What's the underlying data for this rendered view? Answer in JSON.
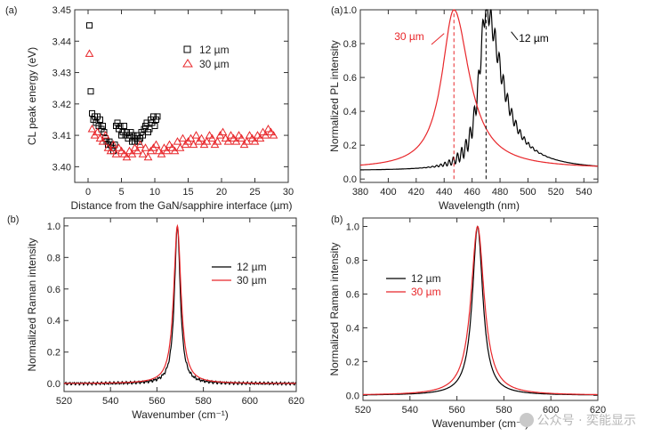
{
  "chart_data": [
    {
      "id": "cl",
      "type": "scatter",
      "panel_label": "(a)",
      "xlabel": "Distance from the GaN/sapphire interface (µm)",
      "ylabel": "CL peak energy (eV)",
      "xlim": [
        -2,
        30
      ],
      "ylim": [
        3.395,
        3.45
      ],
      "xticks": [
        0,
        5,
        10,
        15,
        20,
        25,
        30
      ],
      "yticks": [
        3.4,
        3.41,
        3.42,
        3.43,
        3.44,
        3.45
      ],
      "ytick_labels": [
        "3.40",
        "3.41",
        "3.42",
        "3.43",
        "3.44",
        "3.45"
      ],
      "legend_position": "top-right",
      "series": [
        {
          "name": "12 µm",
          "marker": "square",
          "color": "#000000",
          "x": [
            0.2,
            0.4,
            0.6,
            0.8,
            1.0,
            1.2,
            1.4,
            1.6,
            1.8,
            2.0,
            2.2,
            2.4,
            2.6,
            2.8,
            3.0,
            3.2,
            3.4,
            3.6,
            3.8,
            4.0,
            4.2,
            4.4,
            4.6,
            4.8,
            5.0,
            5.2,
            5.4,
            5.6,
            5.8,
            6.0,
            6.2,
            6.4,
            6.6,
            6.8,
            7.0,
            7.2,
            7.4,
            7.6,
            7.8,
            8.0,
            8.2,
            8.4,
            8.6,
            8.8,
            9.0,
            9.2,
            9.4,
            9.6,
            9.8,
            10.0,
            10.2,
            10.4
          ],
          "y": [
            3.445,
            3.424,
            3.417,
            3.415,
            3.416,
            3.414,
            3.416,
            3.413,
            3.415,
            3.412,
            3.413,
            3.411,
            3.409,
            3.408,
            3.407,
            3.408,
            3.407,
            3.406,
            3.405,
            3.407,
            3.413,
            3.414,
            3.412,
            3.413,
            3.41,
            3.411,
            3.413,
            3.41,
            3.411,
            3.409,
            3.41,
            3.411,
            3.408,
            3.41,
            3.408,
            3.409,
            3.41,
            3.408,
            3.409,
            3.411,
            3.41,
            3.412,
            3.413,
            3.414,
            3.411,
            3.412,
            3.415,
            3.414,
            3.416,
            3.413,
            3.415,
            3.416
          ]
        },
        {
          "name": "30 µm",
          "marker": "triangle",
          "color": "#e8262a",
          "x": [
            0.2,
            0.6,
            1.0,
            1.4,
            1.8,
            2.2,
            2.6,
            3.0,
            3.4,
            3.8,
            4.2,
            4.6,
            5.0,
            5.4,
            5.8,
            6.2,
            6.6,
            7.0,
            7.4,
            7.8,
            8.2,
            8.6,
            9.0,
            9.4,
            9.8,
            10.2,
            10.6,
            11.0,
            11.4,
            11.8,
            12.2,
            12.6,
            13.0,
            13.4,
            13.8,
            14.2,
            14.6,
            15.0,
            15.4,
            15.8,
            16.2,
            16.6,
            17.0,
            17.4,
            17.8,
            18.2,
            18.6,
            19.0,
            19.4,
            19.8,
            20.2,
            20.6,
            21.0,
            21.4,
            21.8,
            22.2,
            22.6,
            23.0,
            23.4,
            23.8,
            24.2,
            24.6,
            25.0,
            25.4,
            25.8,
            26.2,
            26.6,
            27.0,
            27.4,
            27.8
          ],
          "y": [
            3.436,
            3.412,
            3.41,
            3.411,
            3.409,
            3.408,
            3.41,
            3.406,
            3.405,
            3.407,
            3.404,
            3.406,
            3.405,
            3.404,
            3.403,
            3.405,
            3.404,
            3.406,
            3.405,
            3.407,
            3.404,
            3.406,
            3.403,
            3.405,
            3.406,
            3.407,
            3.405,
            3.404,
            3.406,
            3.405,
            3.407,
            3.406,
            3.405,
            3.408,
            3.406,
            3.409,
            3.407,
            3.408,
            3.409,
            3.407,
            3.41,
            3.408,
            3.409,
            3.407,
            3.408,
            3.41,
            3.409,
            3.407,
            3.408,
            3.41,
            3.411,
            3.409,
            3.408,
            3.41,
            3.409,
            3.408,
            3.41,
            3.409,
            3.407,
            3.408,
            3.41,
            3.409,
            3.408,
            3.41,
            3.409,
            3.411,
            3.41,
            3.412,
            3.411,
            3.41
          ]
        }
      ]
    },
    {
      "id": "pl",
      "type": "line",
      "panel_label": "(a)",
      "xlabel": "Wavelength (nm)",
      "ylabel": "Normalized PL intensity",
      "xlim": [
        380,
        550
      ],
      "ylim": [
        -0.02,
        1.0
      ],
      "xticks": [
        380,
        400,
        420,
        440,
        460,
        480,
        500,
        520,
        540
      ],
      "yticks": [
        0.0,
        0.2,
        0.4,
        0.6,
        0.8,
        1.0
      ],
      "ytick_labels": [
        "0.0",
        "0.2",
        "0.4",
        "0.6",
        "0.8",
        "1.0"
      ],
      "vlines": [
        447,
        470
      ],
      "series": [
        {
          "name": "12 µm",
          "color": "#000000",
          "peak": 470,
          "width_left": 8,
          "width_right": 18,
          "baseline": 0.05,
          "ripple": 0.07
        },
        {
          "name": "30 µm",
          "color": "#e8262a",
          "peak": 447,
          "width_left": 14,
          "width_right": 18,
          "baseline": 0.06,
          "ripple": 0.0
        }
      ],
      "annotations": [
        {
          "text": "30 µm",
          "at_x": 440,
          "at_y": 0.86,
          "color": "#e8262a"
        },
        {
          "text": "12 µm",
          "at_x": 488,
          "at_y": 0.87,
          "color": "#000000"
        }
      ]
    },
    {
      "id": "raman_left",
      "type": "line",
      "panel_label": "(b)",
      "xlabel": "Wavenumber (cm⁻¹)",
      "ylabel": "Normalized Raman intensity",
      "xlim": [
        520,
        620
      ],
      "ylim": [
        -0.05,
        1.05
      ],
      "xticks": [
        520,
        540,
        560,
        580,
        600,
        620
      ],
      "yticks": [
        0.0,
        0.2,
        0.4,
        0.6,
        0.8,
        1.0
      ],
      "ytick_labels": [
        "0.0",
        "0.2",
        "0.4",
        "0.6",
        "0.8",
        "1.0"
      ],
      "legend_position": "top-right",
      "series": [
        {
          "name": "12 µm",
          "color": "#000000",
          "peak": 568.8,
          "hwhm": 1.5,
          "noise": 0.01
        },
        {
          "name": "30 µm",
          "color": "#e8262a",
          "peak": 568.8,
          "hwhm": 1.9,
          "noise": 0.0
        }
      ]
    },
    {
      "id": "raman_right",
      "type": "line",
      "panel_label": "(b)",
      "xlabel": "Wavenumber (cm⁻¹)",
      "ylabel": "Normalized Raman intensity",
      "xlim": [
        520,
        620
      ],
      "ylim": [
        -0.03,
        1.05
      ],
      "xticks": [
        520,
        540,
        560,
        580,
        600,
        620
      ],
      "yticks": [
        0.0,
        0.2,
        0.4,
        0.6,
        0.8,
        1.0
      ],
      "ytick_labels": [
        "0.0",
        "0.2",
        "0.4",
        "0.6",
        "0.8",
        "1.0"
      ],
      "legend_position": "top-left",
      "series": [
        {
          "name": "12 µm",
          "color": "#000000",
          "peak": 568.8,
          "hwhm": 2.7,
          "noise": 0.0
        },
        {
          "name": "30 µm",
          "color": "#e8262a",
          "peak": 568.8,
          "hwhm": 3.4,
          "noise": 0.0
        }
      ]
    }
  ],
  "watermark": {
    "text": "公众号 · 奕能显示"
  }
}
